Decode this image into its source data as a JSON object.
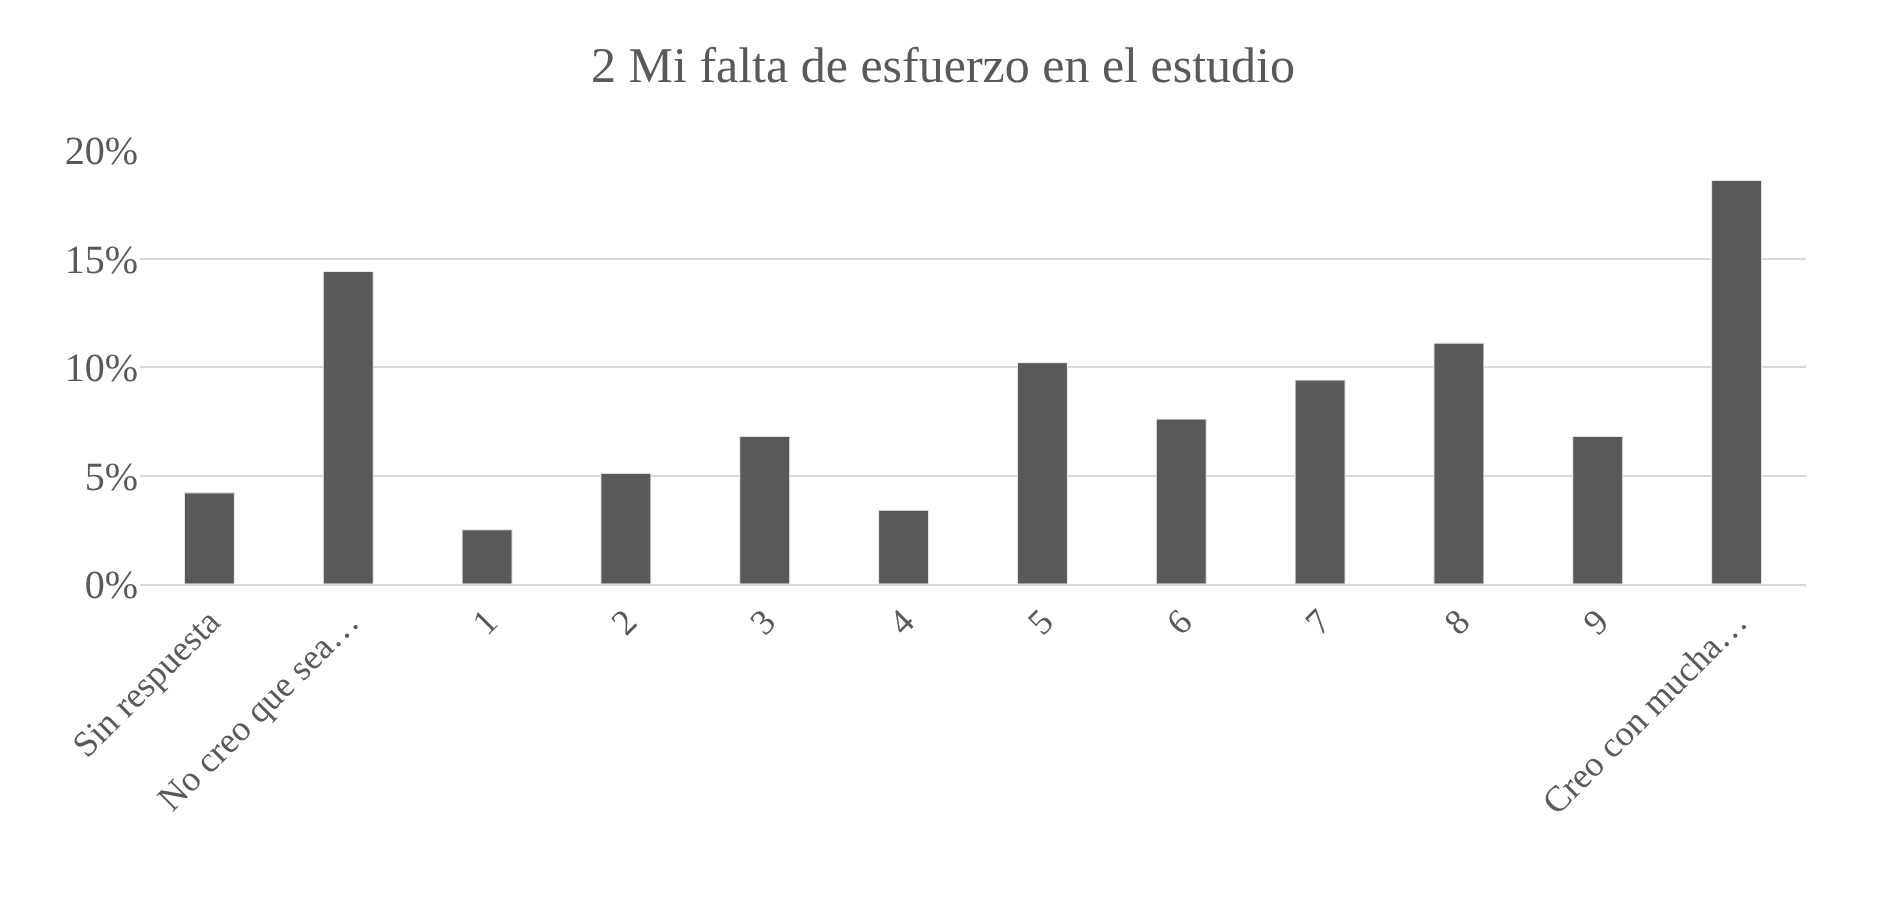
{
  "chart_data": {
    "type": "bar",
    "title": "2 Mi falta de esfuerzo en el estudio",
    "categories": [
      "Sin respuesta",
      "No creo que sea…",
      "1",
      "2",
      "3",
      "4",
      "5",
      "6",
      "7",
      "8",
      "9",
      "Creo con mucha…"
    ],
    "values": [
      4.2,
      14.4,
      2.5,
      5.1,
      6.8,
      3.4,
      10.2,
      7.6,
      9.4,
      11.1,
      6.8,
      18.6
    ],
    "color": "#595959",
    "ylim": [
      0,
      20
    ],
    "yticks": [
      {
        "value": 0,
        "label": "0%"
      },
      {
        "value": 5,
        "label": "5%"
      },
      {
        "value": 10,
        "label": "10%"
      },
      {
        "value": 15,
        "label": "15%"
      },
      {
        "value": 20,
        "label": "20%"
      }
    ],
    "grid": "y"
  }
}
